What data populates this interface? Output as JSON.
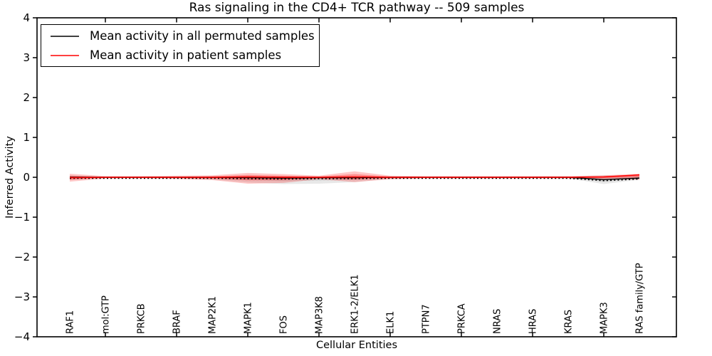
{
  "chart_data": {
    "type": "line",
    "title": "Ras signaling in the CD4+ TCR pathway -- 509 samples",
    "xlabel": "Cellular Entities",
    "ylabel": "Inferred Activity",
    "ylim": [
      -4,
      4
    ],
    "grid": false,
    "legend_position": "upper left",
    "y_tick_values": [
      4,
      3,
      2,
      1,
      0,
      -1,
      -2,
      -3,
      -4
    ],
    "y_tick_labels": [
      "4",
      "3",
      "2",
      "1",
      "0",
      "−1",
      "−2",
      "−3",
      "−4"
    ],
    "x_axis_tick_category_indices": [
      1,
      3,
      5,
      7,
      9,
      11,
      13,
      15
    ],
    "categories": [
      "RAF1",
      "mol:GTP",
      "PRKCB",
      "BRAF",
      "MAP2K1",
      "MAPK1",
      "FOS",
      "MAP3K8",
      "ERK1-2/ELK1",
      "ELK1",
      "PTPN7",
      "PRKCA",
      "NRAS",
      "HRAS",
      "KRAS",
      "MAPK3",
      "RAS family/GTP"
    ],
    "series": [
      {
        "name": "Mean activity in all permuted samples",
        "color": "#000000",
        "band_color": "rgba(0,0,0,0.09)",
        "line_style": "solid-with-dotted-overlay",
        "values": [
          0,
          0,
          0,
          0,
          0,
          -0.01,
          -0.02,
          -0.01,
          -0.01,
          0,
          0,
          0,
          0,
          0,
          0,
          -0.06,
          -0.02
        ],
        "band_upper": [
          0.05,
          0.01,
          0.01,
          0.01,
          0.02,
          0.03,
          0.03,
          0.02,
          0.03,
          0.02,
          0.01,
          0.01,
          0.01,
          0.01,
          0.02,
          0.05,
          0.04
        ],
        "band_lower": [
          -0.07,
          -0.01,
          -0.01,
          -0.02,
          -0.06,
          -0.13,
          -0.17,
          -0.16,
          -0.12,
          -0.04,
          -0.02,
          -0.02,
          -0.02,
          -0.02,
          -0.03,
          -0.17,
          -0.06
        ]
      },
      {
        "name": "Mean activity in patient samples",
        "color": "#ff0000",
        "band_color": "rgba(255,0,0,0.22)",
        "line_style": "solid",
        "values": [
          -0.01,
          0,
          0,
          0,
          0,
          0.01,
          0,
          0,
          0.01,
          0,
          0,
          0,
          0,
          0,
          0,
          0.01,
          0.06
        ],
        "band_upper": [
          0.09,
          0.03,
          0.03,
          0.04,
          0.05,
          0.11,
          0.08,
          0.04,
          0.15,
          0.04,
          0.03,
          0.03,
          0.03,
          0.03,
          0.03,
          0.05,
          0.09
        ],
        "band_lower": [
          -0.11,
          -0.03,
          -0.03,
          -0.04,
          -0.07,
          -0.16,
          -0.14,
          -0.05,
          -0.12,
          -0.05,
          -0.03,
          -0.03,
          -0.03,
          -0.03,
          -0.03,
          -0.05,
          -0.06
        ]
      }
    ]
  }
}
